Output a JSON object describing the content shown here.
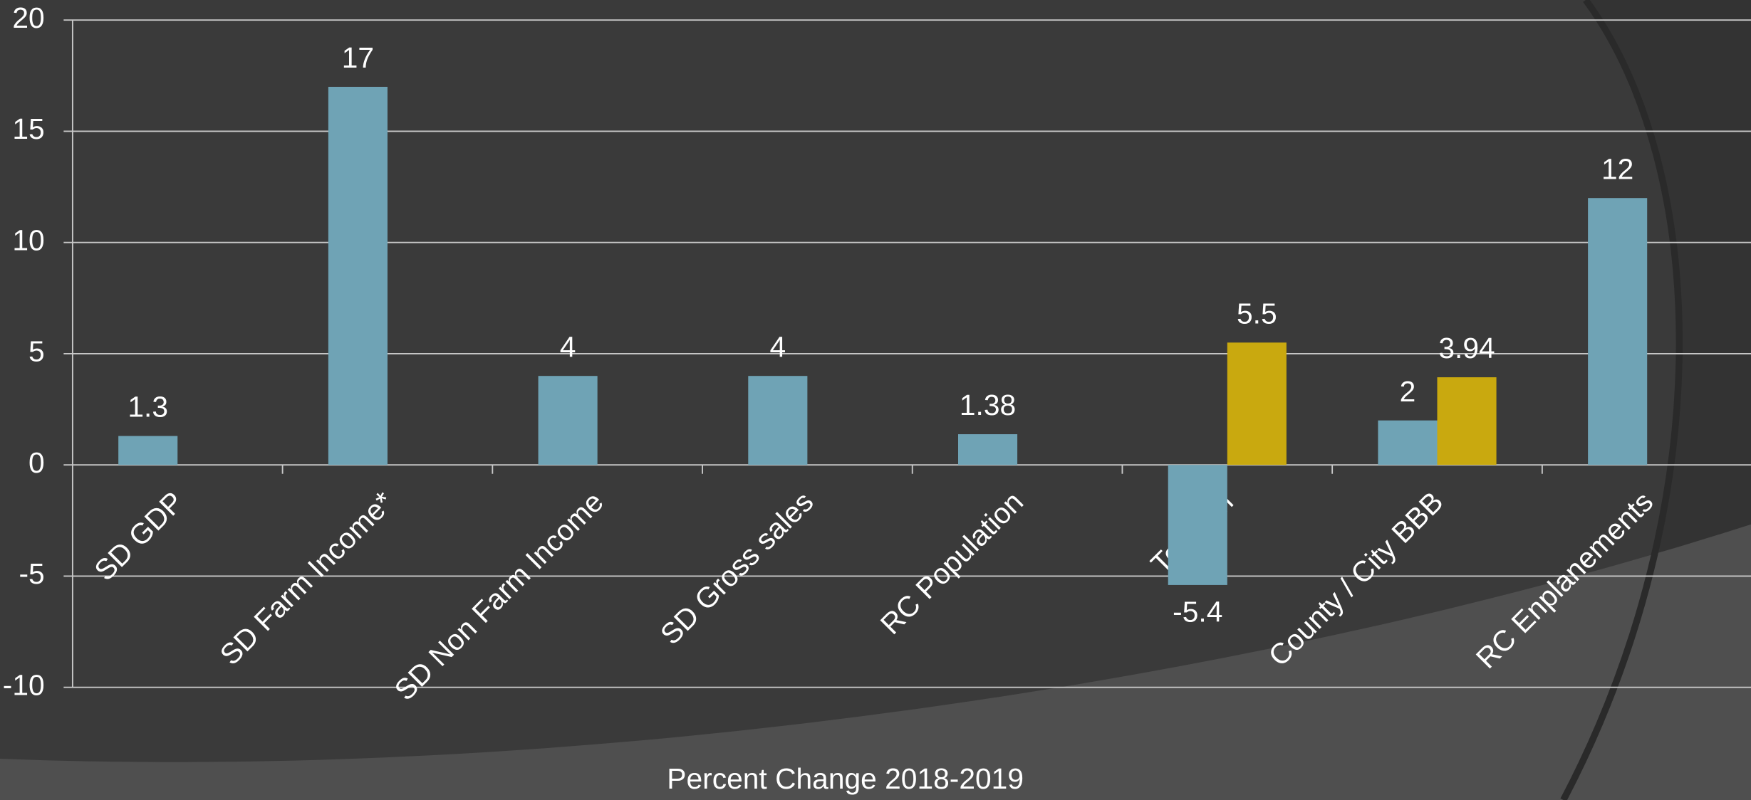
{
  "chart_data": {
    "type": "bar",
    "x_label": "Percent Change 2018-2019",
    "categories": [
      "SD GDP",
      "SD Farm Income*",
      "SD Non Farm Income",
      "SD Gross sales",
      "RC Population",
      "Tourism",
      "County / City BBB",
      "RC Enplanements"
    ],
    "series": [
      {
        "color": "#6fa3b5",
        "values": [
          1.3,
          17,
          4,
          4,
          1.38,
          -5.4,
          2,
          12
        ]
      },
      {
        "color": "#c9a90f",
        "values": [
          null,
          null,
          null,
          null,
          null,
          5.5,
          3.94,
          null
        ]
      }
    ],
    "ylim": [
      -10,
      20
    ],
    "yticks": [
      -10,
      -5,
      0,
      5,
      10,
      15,
      20
    ],
    "grid": true
  }
}
